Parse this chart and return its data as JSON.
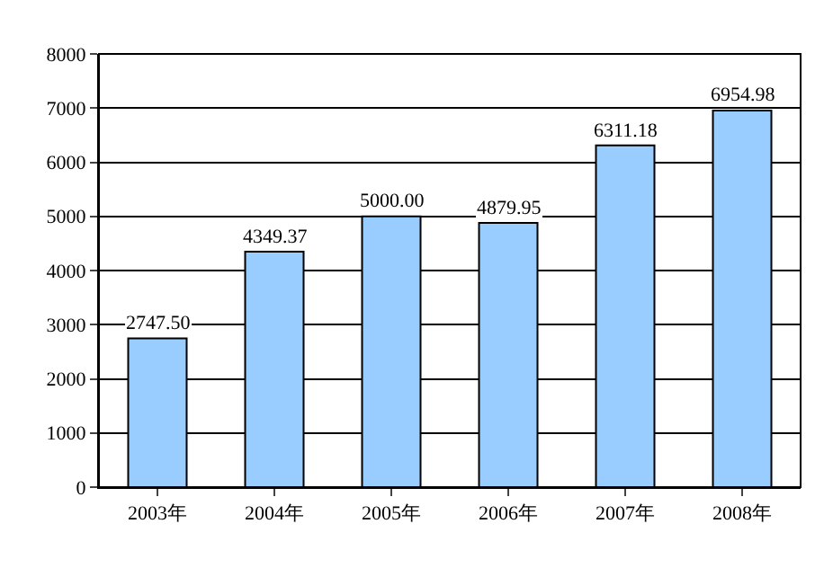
{
  "chart_data": {
    "type": "bar",
    "categories": [
      "2003年",
      "2004年",
      "2005年",
      "2006年",
      "2007年",
      "2008年"
    ],
    "values": [
      2747.5,
      4349.37,
      5000.0,
      4879.95,
      6311.18,
      6954.98
    ],
    "value_labels": [
      "2747.50",
      "4349.37",
      "5000.00",
      "4879.95",
      "6311.18",
      "6954.98"
    ],
    "color": "#99ccff",
    "ylim": [
      0,
      8000
    ],
    "yticks": [
      0,
      1000,
      2000,
      3000,
      4000,
      5000,
      6000,
      7000,
      8000
    ],
    "grid": "y",
    "legend": false
  }
}
